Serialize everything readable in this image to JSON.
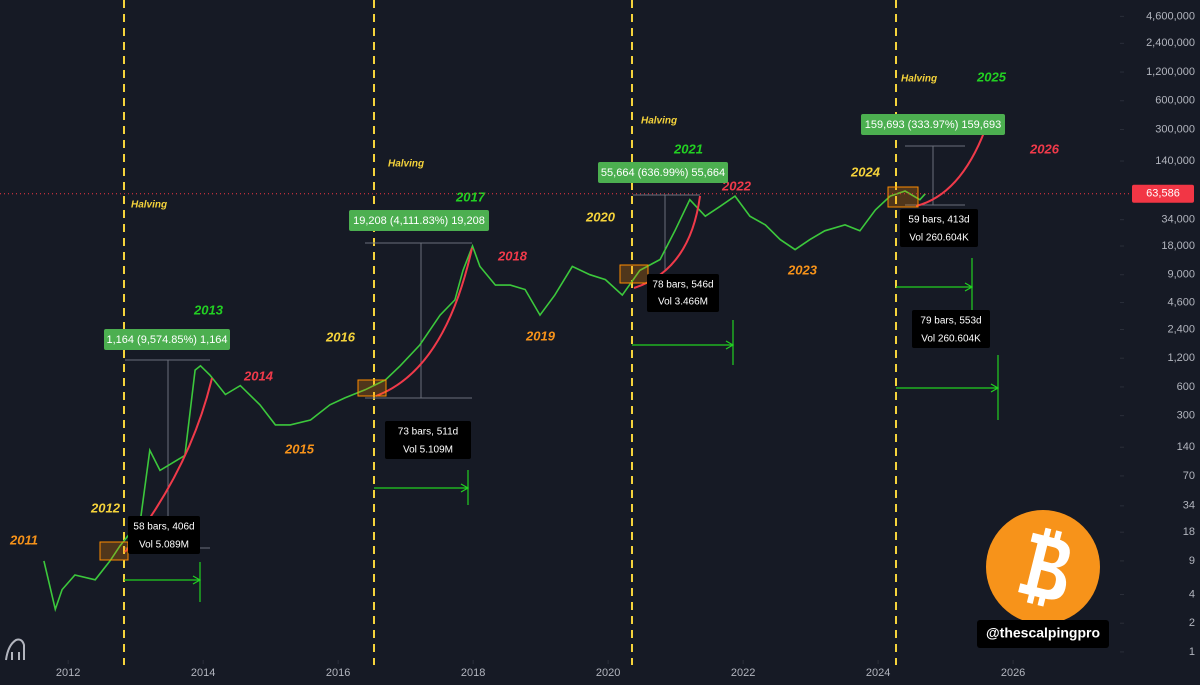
{
  "chart_data": {
    "type": "line",
    "log_y": true,
    "x": [
      2011.64,
      2011.81,
      2011.91,
      2012.1,
      2012.4,
      2012.62,
      2012.77,
      2013.07,
      2013.21,
      2013.36,
      2013.59,
      2013.73,
      2013.88,
      2013.96,
      2014.1,
      2014.33,
      2014.55,
      2014.84,
      2015.07,
      2015.29,
      2015.59,
      2015.88,
      2016.1,
      2016.4,
      2016.7,
      2016.92,
      2017.21,
      2017.51,
      2017.73,
      2017.85,
      2017.99,
      2018.1,
      2018.33,
      2018.55,
      2018.77,
      2018.99,
      2019.21,
      2019.47,
      2019.73,
      2019.96,
      2020.21,
      2020.47,
      2020.77,
      2020.99,
      2021.21,
      2021.44,
      2021.66,
      2021.88,
      2022.1,
      2022.33,
      2022.55,
      2022.77,
      2022.99,
      2023.21,
      2023.51,
      2023.73,
      2023.96,
      2024.18,
      2024.4,
      2024.62,
      2024.7
    ],
    "values": [
      9,
      2.8,
      4.5,
      6.4,
      5.7,
      9,
      13,
      24,
      130,
      80,
      100,
      115,
      900,
      1000,
      800,
      500,
      620,
      390,
      240,
      240,
      270,
      390,
      460,
      560,
      710,
      1000,
      1650,
      3400,
      4900,
      10000,
      18000,
      11000,
      7000,
      7000,
      6300,
      3400,
      5500,
      11000,
      9000,
      8000,
      5500,
      10000,
      13000,
      26000,
      55000,
      37000,
      47000,
      60000,
      37000,
      30000,
      21000,
      16500,
      21000,
      26000,
      30000,
      26000,
      43000,
      60000,
      68000,
      55000,
      63586
    ],
    "color": "#3cc83c",
    "xlim": [
      2010.99,
      2027.51
    ],
    "ylim": [
      0.45,
      6830000
    ],
    "xticks": [
      2012,
      2014,
      2016,
      2018,
      2020,
      2022,
      2024,
      2026
    ],
    "yticks": [
      1,
      2,
      4,
      9,
      18,
      34,
      70,
      140,
      300,
      600,
      {
        "value": 1200,
        "label": "1,200"
      },
      {
        "value": 2400,
        "label": "2,400"
      },
      {
        "value": 4600,
        "label": "4,600"
      },
      {
        "value": 9000,
        "label": "9,000"
      },
      {
        "value": 18000,
        "label": "18,000"
      },
      {
        "value": 34000,
        "label": "34,000"
      },
      {
        "value": 140000,
        "label": "140,000"
      },
      {
        "value": 300000,
        "label": "300,000"
      },
      {
        "value": 600000,
        "label": "600,000"
      },
      {
        "value": 1200000,
        "label": "1,200,000"
      },
      {
        "value": 2400000,
        "label": "2,400,000"
      },
      {
        "value": 4600000,
        "label": "4,600,000"
      }
    ],
    "last_price": {
      "value": 63586,
      "label": "63,586"
    }
  },
  "annotations": {
    "halving": [
      "Halving",
      "Halving",
      "Halving",
      "Halving"
    ],
    "years": [
      "2011",
      "2012",
      "2013",
      "2014",
      "2015",
      "2016",
      "2017",
      "2018",
      "2019",
      "2020",
      "2021",
      "2022",
      "2023",
      "2024",
      "2025",
      "2026"
    ],
    "measures": [
      "1,164 (9,574.85%) 1,164",
      "19,208 (4,111.83%) 19,208",
      "55,664 (636.99%) 55,664",
      "159,693 (333.97%) 159,693"
    ],
    "ranges": [
      [
        "58 bars, 406d",
        "Vol 5.089M"
      ],
      [
        "73 bars, 511d",
        "Vol 5.109M"
      ],
      [
        "78 bars, 546d",
        "Vol 3.466M"
      ],
      [
        "59 bars, 413d",
        "Vol 260.604K"
      ],
      [
        "79 bars, 553d",
        "Vol 260.604K"
      ]
    ],
    "handle": "@thescalpingpro"
  }
}
